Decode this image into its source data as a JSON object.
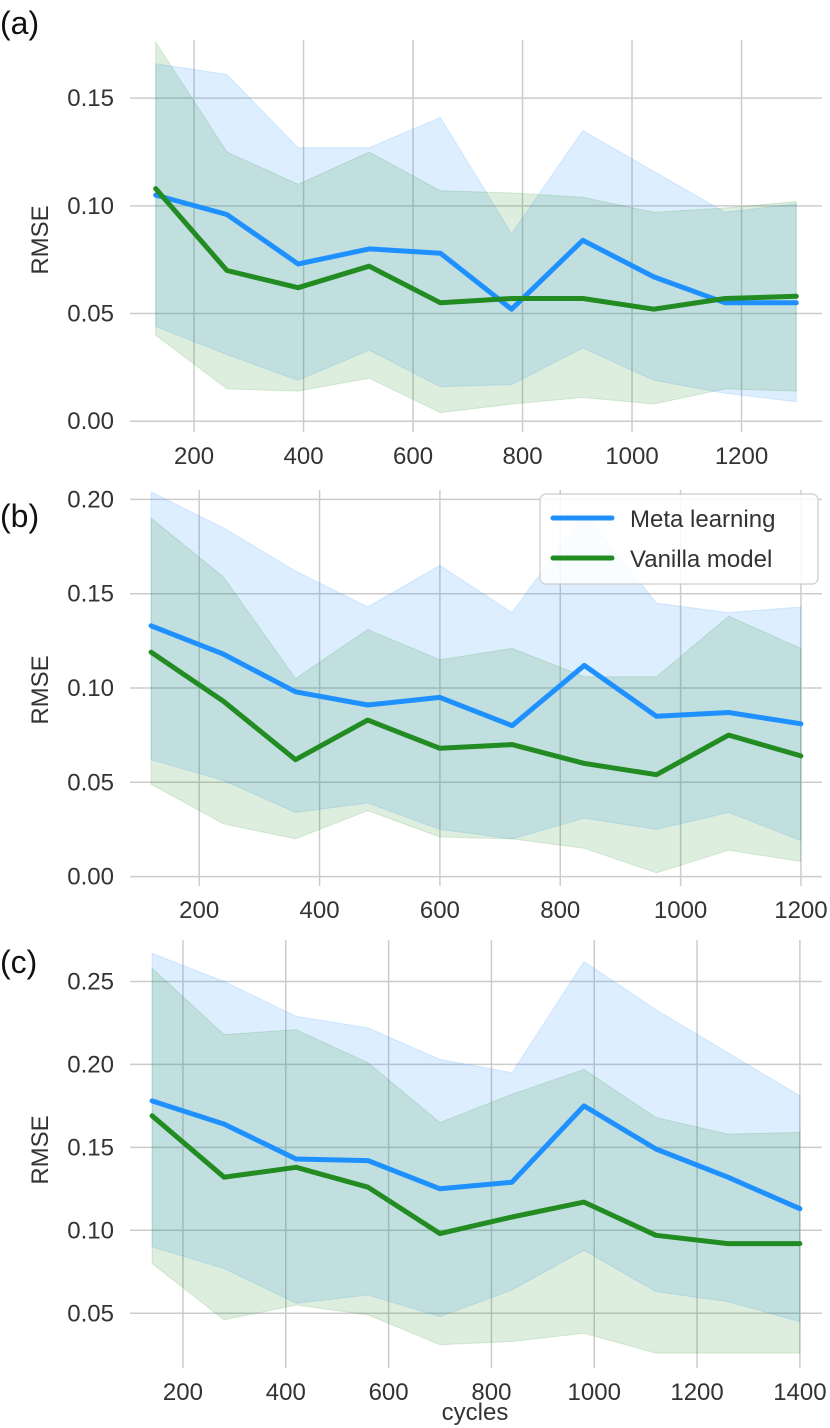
{
  "legend": {
    "entries": [
      {
        "label": "Meta learning",
        "color": "#1e90ff"
      },
      {
        "label": "Vanilla model",
        "color": "#228b22"
      }
    ],
    "placement": "top-right of panel (b)"
  },
  "chart_data": [
    {
      "panel": "(a)",
      "type": "line",
      "ylabel": "RMSE",
      "xlabel": "",
      "xlim": [
        83,
        1347
      ],
      "ylim": [
        -0.005,
        0.177
      ],
      "xticks": [
        200,
        400,
        600,
        800,
        1000,
        1200
      ],
      "yticks": [
        0.0,
        0.05,
        0.1,
        0.15
      ],
      "xtick_labels": [
        "200",
        "400",
        "600",
        "800",
        "1000",
        "1200"
      ],
      "ytick_labels": [
        "0.00",
        "0.05",
        "0.10",
        "0.15"
      ],
      "grid": true,
      "x": [
        130,
        260,
        390,
        520,
        650,
        780,
        910,
        1040,
        1170,
        1300
      ],
      "series": [
        {
          "name": "Meta learning",
          "color": "#1e90ff",
          "values": [
            0.105,
            0.096,
            0.073,
            0.08,
            0.078,
            0.052,
            0.084,
            0.067,
            0.055,
            0.055
          ],
          "upper": [
            0.166,
            0.161,
            0.127,
            0.127,
            0.141,
            0.087,
            0.135,
            0.116,
            0.097,
            0.101
          ],
          "lower": [
            0.044,
            0.031,
            0.019,
            0.033,
            0.016,
            0.017,
            0.034,
            0.019,
            0.013,
            0.009
          ]
        },
        {
          "name": "Vanilla model",
          "color": "#228b22",
          "values": [
            0.108,
            0.07,
            0.062,
            0.072,
            0.055,
            0.057,
            0.057,
            0.052,
            0.057,
            0.058
          ],
          "upper": [
            0.176,
            0.125,
            0.11,
            0.125,
            0.107,
            0.106,
            0.104,
            0.097,
            0.099,
            0.102
          ],
          "lower": [
            0.04,
            0.015,
            0.014,
            0.02,
            0.004,
            0.008,
            0.011,
            0.008,
            0.015,
            0.014
          ]
        }
      ]
    },
    {
      "panel": "(b)",
      "type": "line",
      "ylabel": "RMSE",
      "xlabel": "",
      "xlim": [
        85,
        1235
      ],
      "ylim": [
        -0.005,
        0.205
      ],
      "xticks": [
        200,
        400,
        600,
        800,
        1000,
        1200
      ],
      "yticks": [
        0.0,
        0.05,
        0.1,
        0.15,
        0.2
      ],
      "xtick_labels": [
        "200",
        "400",
        "600",
        "800",
        "1000",
        "1200"
      ],
      "ytick_labels": [
        "0.00",
        "0.05",
        "0.10",
        "0.15",
        "0.20"
      ],
      "grid": true,
      "x": [
        120,
        240,
        360,
        480,
        600,
        720,
        840,
        960,
        1080,
        1200
      ],
      "series": [
        {
          "name": "Meta learning",
          "color": "#1e90ff",
          "values": [
            0.133,
            0.118,
            0.098,
            0.091,
            0.095,
            0.08,
            0.112,
            0.085,
            0.087,
            0.081
          ],
          "upper": [
            0.204,
            0.185,
            0.162,
            0.143,
            0.165,
            0.14,
            0.193,
            0.145,
            0.14,
            0.143
          ],
          "lower": [
            0.062,
            0.051,
            0.034,
            0.039,
            0.025,
            0.02,
            0.031,
            0.025,
            0.034,
            0.019
          ]
        },
        {
          "name": "Vanilla model",
          "color": "#228b22",
          "values": [
            0.119,
            0.093,
            0.062,
            0.083,
            0.068,
            0.07,
            0.06,
            0.054,
            0.075,
            0.064
          ],
          "upper": [
            0.19,
            0.159,
            0.105,
            0.131,
            0.115,
            0.121,
            0.106,
            0.106,
            0.138,
            0.121
          ],
          "lower": [
            0.049,
            0.028,
            0.02,
            0.035,
            0.021,
            0.02,
            0.015,
            0.002,
            0.014,
            0.008
          ]
        }
      ]
    },
    {
      "panel": "(c)",
      "type": "line",
      "ylabel": "RMSE",
      "xlabel": "cycles",
      "xlim": [
        97,
        1443
      ],
      "ylim": [
        0.017,
        0.275
      ],
      "xticks": [
        200,
        400,
        600,
        800,
        1000,
        1200,
        1400
      ],
      "yticks": [
        0.05,
        0.1,
        0.15,
        0.2,
        0.25
      ],
      "xtick_labels": [
        "200",
        "400",
        "600",
        "800",
        "1000",
        "1200",
        "1400"
      ],
      "ytick_labels": [
        "0.05",
        "0.10",
        "0.15",
        "0.20",
        "0.25"
      ],
      "grid": true,
      "x": [
        140,
        280,
        420,
        560,
        700,
        840,
        980,
        1120,
        1260,
        1400
      ],
      "series": [
        {
          "name": "Meta learning",
          "color": "#1e90ff",
          "values": [
            0.178,
            0.164,
            0.143,
            0.142,
            0.125,
            0.129,
            0.175,
            0.149,
            0.132,
            0.113
          ],
          "upper": [
            0.267,
            0.25,
            0.229,
            0.222,
            0.203,
            0.195,
            0.262,
            0.233,
            0.207,
            0.181
          ],
          "lower": [
            0.09,
            0.077,
            0.056,
            0.061,
            0.048,
            0.064,
            0.088,
            0.063,
            0.057,
            0.045
          ]
        },
        {
          "name": "Vanilla model",
          "color": "#228b22",
          "values": [
            0.169,
            0.132,
            0.138,
            0.126,
            0.098,
            0.108,
            0.117,
            0.097,
            0.092,
            0.092
          ],
          "upper": [
            0.258,
            0.218,
            0.221,
            0.201,
            0.165,
            0.182,
            0.197,
            0.168,
            0.158,
            0.159
          ],
          "lower": [
            0.08,
            0.046,
            0.055,
            0.049,
            0.031,
            0.033,
            0.038,
            0.026,
            0.026,
            0.026
          ]
        }
      ]
    }
  ]
}
